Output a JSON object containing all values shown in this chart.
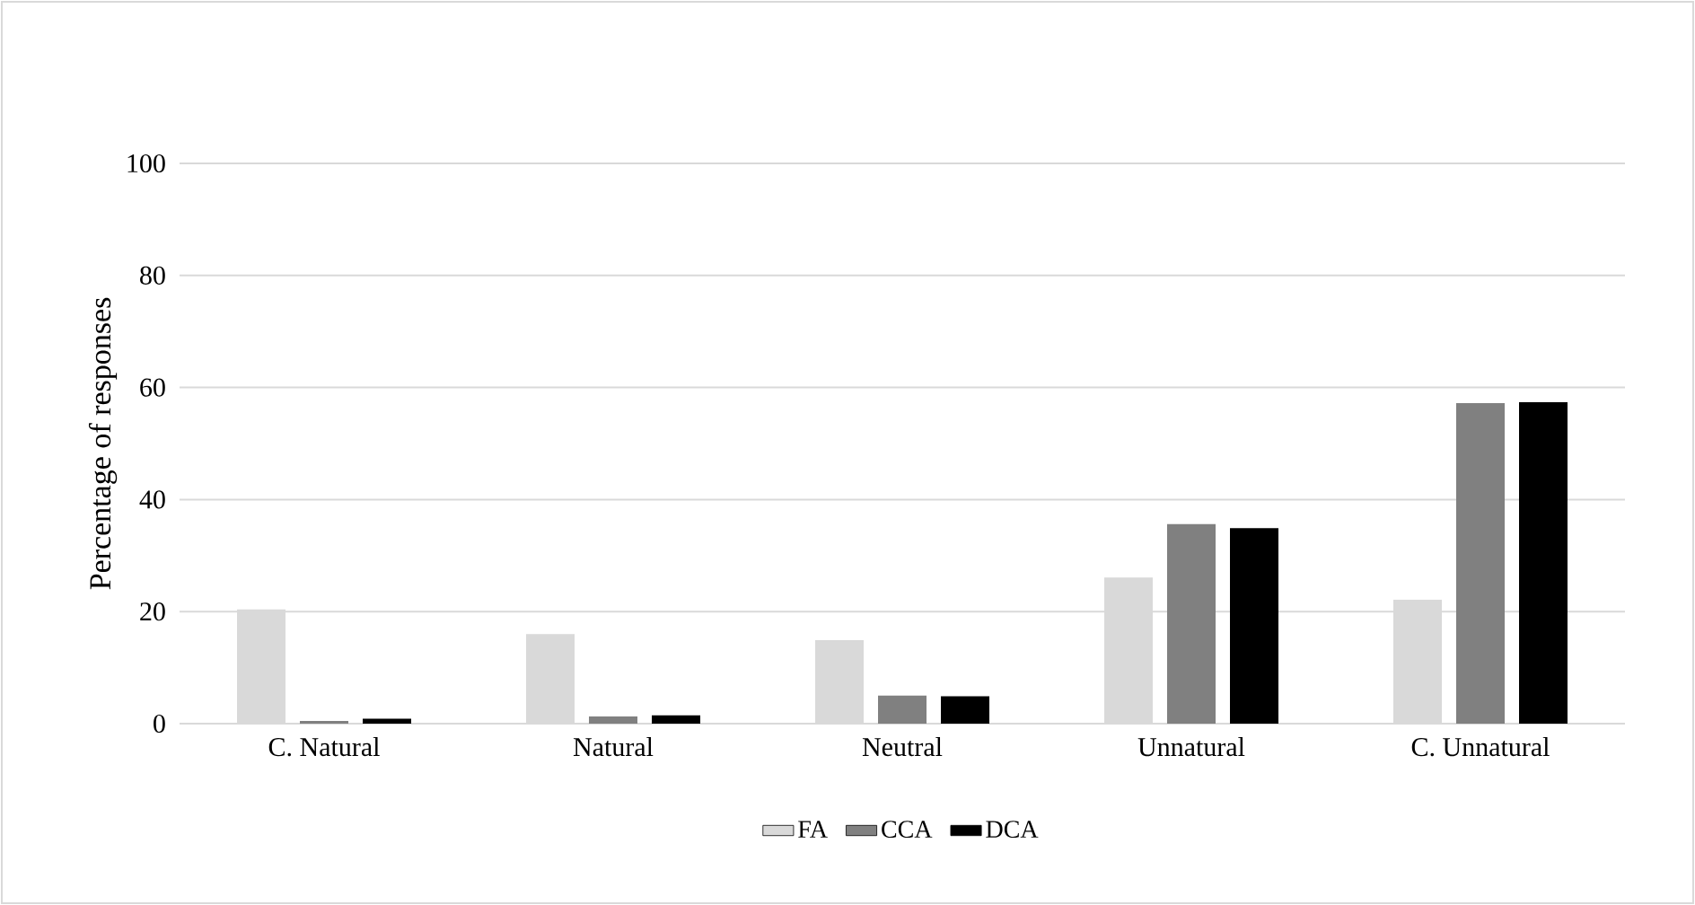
{
  "chart_data": {
    "type": "bar",
    "ylabel": "Percentage of responses",
    "categories": [
      "C. Natural",
      "Natural",
      "Neutral",
      "Unnatural",
      "C. Unnatural"
    ],
    "series": [
      {
        "name": "FA",
        "color": "#d9d9d9",
        "values": [
          20.4,
          16.0,
          14.9,
          26.1,
          22.1
        ]
      },
      {
        "name": "CCA",
        "color": "#808080",
        "values": [
          0.5,
          1.3,
          5.0,
          35.6,
          57.2
        ]
      },
      {
        "name": "DCA",
        "color": "#000000",
        "values": [
          0.9,
          1.5,
          4.9,
          34.9,
          57.4
        ]
      }
    ],
    "ylim": [
      0,
      100
    ],
    "yticks": [
      0,
      20,
      40,
      60,
      80,
      100
    ],
    "grid": "y",
    "legend": "bottom"
  }
}
